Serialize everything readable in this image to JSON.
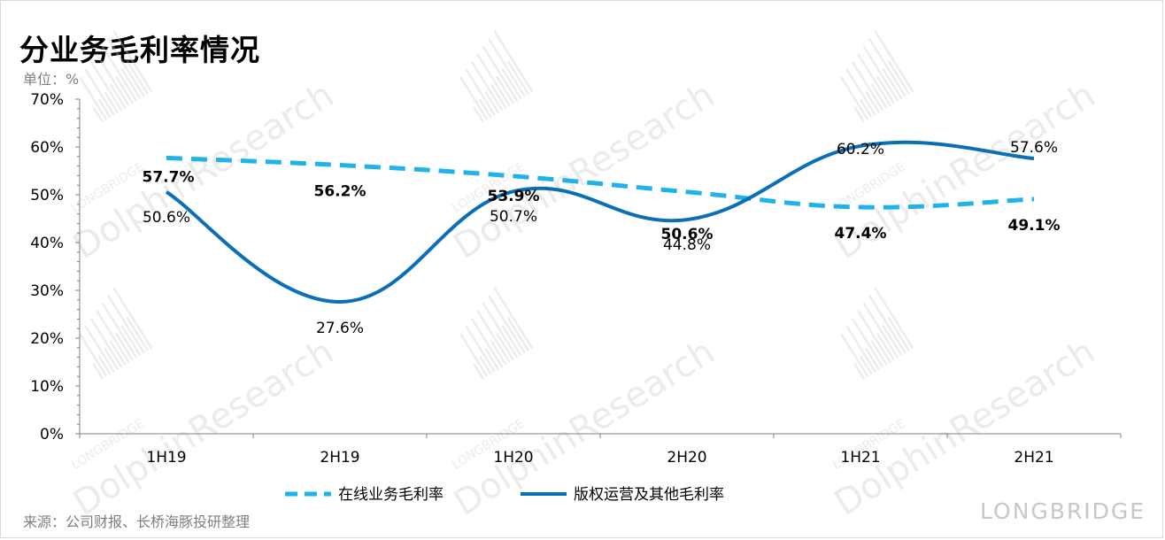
{
  "title": "分业务毛利率情况",
  "unit_label": "单位：%",
  "source": "来源：公司财报、长桥海豚投研整理",
  "watermark": {
    "text_main": "DolphinResearch",
    "text_sub": "LONGBRIDGE",
    "brand": "LONGBRIDGE"
  },
  "colors": {
    "online": "#1fb3ea",
    "copyright": "#0b6fb8"
  },
  "chart_data": {
    "type": "line",
    "categories": [
      "1H19",
      "2H19",
      "1H20",
      "2H20",
      "1H21",
      "2H21"
    ],
    "ylim": [
      0,
      70
    ],
    "yticks": [
      0,
      10,
      20,
      30,
      40,
      50,
      60,
      70
    ],
    "ytick_labels": [
      "0%",
      "10%",
      "20%",
      "30%",
      "40%",
      "50%",
      "60%",
      "70%"
    ],
    "series": [
      {
        "name": "在线业务毛利率",
        "values": [
          57.7,
          56.2,
          53.9,
          50.6,
          47.4,
          49.1
        ],
        "labels": [
          "57.7%",
          "56.2%",
          "53.9%",
          "50.6%",
          "47.4%",
          "49.1%"
        ],
        "style": "dashed",
        "color": "#1fb3ea"
      },
      {
        "name": "版权运营及其他毛利率",
        "values": [
          50.6,
          27.6,
          50.7,
          44.8,
          60.2,
          57.6
        ],
        "labels": [
          "50.6%",
          "27.6%",
          "50.7%",
          "44.8%",
          "60.2%",
          "57.6%"
        ],
        "style": "solid",
        "color": "#0b6fb8"
      }
    ],
    "legend_position": "bottom"
  }
}
